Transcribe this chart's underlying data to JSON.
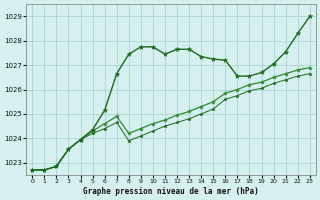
{
  "title": "Graphe pression niveau de la mer (hPa)",
  "background_color": "#d6f0f0",
  "grid_color": "#b0d8d8",
  "line_color1": "#1a6b1a",
  "line_color2": "#2d8b2d",
  "xlim": [
    -0.5,
    23.5
  ],
  "ylim": [
    1022.5,
    1029.5
  ],
  "xticks": [
    0,
    1,
    2,
    3,
    4,
    5,
    6,
    7,
    8,
    9,
    10,
    11,
    12,
    13,
    14,
    15,
    16,
    17,
    18,
    19,
    20,
    21,
    22,
    23
  ],
  "yticks": [
    1023,
    1024,
    1025,
    1026,
    1027,
    1028,
    1029
  ],
  "series1_x": [
    0,
    1,
    2,
    3,
    4,
    5,
    6,
    7,
    8,
    9,
    10,
    11,
    12,
    13,
    14,
    15,
    16,
    17,
    18,
    19,
    20,
    21,
    22,
    23
  ],
  "series1_y": [
    1022.7,
    1022.7,
    1022.85,
    1023.55,
    1023.95,
    1024.35,
    1025.15,
    1026.65,
    1027.45,
    1027.75,
    1027.75,
    1027.45,
    1027.65,
    1027.65,
    1027.35,
    1027.25,
    1027.2,
    1026.55,
    1026.55,
    1026.7,
    1027.05,
    1027.55,
    1028.3,
    1029.0
  ],
  "series2_x": [
    0,
    1,
    2,
    3,
    4,
    5,
    6,
    7,
    8,
    9,
    10,
    11,
    12,
    13,
    14,
    15,
    16,
    17,
    18,
    19,
    20,
    21,
    22,
    23
  ],
  "series2_y": [
    1022.7,
    1022.7,
    1022.85,
    1023.55,
    1023.95,
    1024.3,
    1024.6,
    1024.9,
    1024.2,
    1024.4,
    1024.6,
    1024.75,
    1024.95,
    1025.1,
    1025.3,
    1025.5,
    1025.85,
    1026.0,
    1026.2,
    1026.3,
    1026.5,
    1026.65,
    1026.8,
    1026.9
  ],
  "series3_x": [
    0,
    1,
    2,
    3,
    4,
    5,
    6,
    7,
    8,
    9,
    10,
    11,
    12,
    13,
    14,
    15,
    16,
    17,
    18,
    19,
    20,
    21,
    22,
    23
  ],
  "series3_y": [
    1022.7,
    1022.7,
    1022.85,
    1023.55,
    1023.95,
    1024.2,
    1024.4,
    1024.65,
    1023.9,
    1024.1,
    1024.3,
    1024.5,
    1024.65,
    1024.8,
    1025.0,
    1025.2,
    1025.6,
    1025.75,
    1025.95,
    1026.05,
    1026.25,
    1026.4,
    1026.55,
    1026.65
  ]
}
